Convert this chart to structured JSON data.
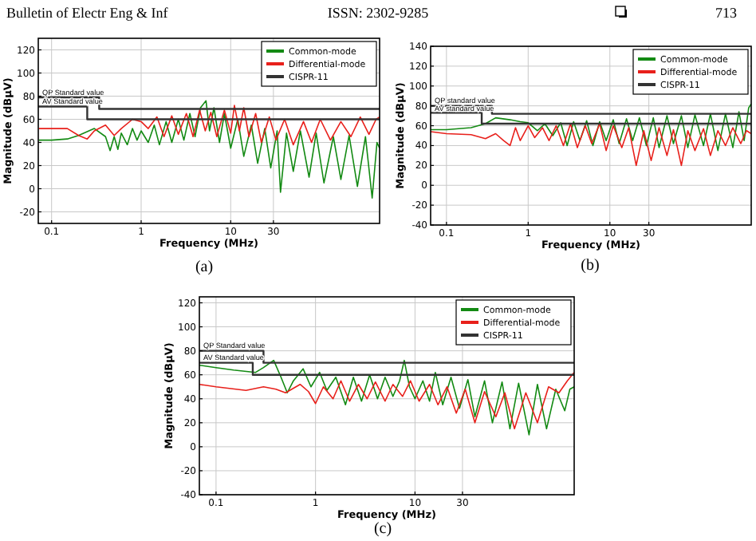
{
  "chart_data": [
    {
      "type": "line",
      "xlabel": "Frequency (MHz)",
      "ylabel": "Magnitude (dBμV)",
      "log": "x",
      "grid": true,
      "legend": "top right",
      "xlim": [
        0.071,
        460
      ],
      "xticks": [
        0.1,
        1,
        10,
        30
      ],
      "ylim": [
        -30,
        130
      ],
      "yticks": [
        -20,
        0,
        20,
        40,
        60,
        80,
        100,
        120
      ],
      "annotations": [
        "Bulletin of Electr Eng & Inf",
        "ISSN: 2302-9285",
        "713",
        "(a)",
        {
          "text": "QP Standard value",
          "x": 0.071,
          "y": 79
        },
        {
          "text": "AV Standard value",
          "x": 0.071,
          "y": 71
        }
      ],
      "series": [
        {
          "name": "Common-mode",
          "color": "#138a13",
          "x": [
            0.072,
            0.1,
            0.15,
            0.2,
            0.3,
            0.4,
            0.45,
            0.5,
            0.55,
            0.6,
            0.7,
            0.8,
            0.9,
            1.0,
            1.2,
            1.4,
            1.6,
            1.9,
            2.2,
            2.6,
            3,
            3.5,
            4,
            4.6,
            5.3,
            5.8,
            6.5,
            7.5,
            8.5,
            10,
            12,
            14,
            17,
            20,
            24,
            28,
            33,
            36,
            42,
            50,
            60,
            75,
            90,
            110,
            140,
            170,
            210,
            260,
            320,
            380,
            430,
            460
          ],
          "values": [
            42,
            42,
            43,
            46,
            52,
            45,
            33,
            45,
            34,
            48,
            38,
            52,
            42,
            50,
            40,
            55,
            38,
            58,
            40,
            60,
            42,
            65,
            45,
            70,
            76,
            50,
            70,
            40,
            65,
            35,
            60,
            28,
            55,
            22,
            52,
            18,
            50,
            -3,
            48,
            15,
            50,
            10,
            48,
            5,
            45,
            8,
            46,
            2,
            45,
            -8,
            40,
            35
          ]
        },
        {
          "name": "Differential-mode",
          "color": "#e8201b",
          "x": [
            0.072,
            0.1,
            0.15,
            0.2,
            0.25,
            0.3,
            0.4,
            0.5,
            0.6,
            0.8,
            1.0,
            1.2,
            1.5,
            1.8,
            2.2,
            2.6,
            3.2,
            3.8,
            4.5,
            5.2,
            6,
            7,
            8.5,
            10,
            11,
            12.5,
            14,
            16,
            19,
            22,
            27,
            32,
            40,
            50,
            65,
            80,
            100,
            130,
            170,
            220,
            280,
            350,
            420,
            460
          ],
          "values": [
            52,
            52,
            52,
            46,
            43,
            50,
            55,
            46,
            52,
            60,
            58,
            52,
            62,
            45,
            63,
            47,
            65,
            45,
            68,
            50,
            66,
            45,
            68,
            48,
            72,
            50,
            70,
            45,
            65,
            40,
            62,
            42,
            60,
            38,
            58,
            40,
            60,
            42,
            58,
            45,
            62,
            47,
            60,
            62
          ]
        },
        {
          "name": "CISPR-11",
          "color": "#333333",
          "x": [
            0.071,
            0.34,
            0.34,
            460
          ],
          "values": [
            79,
            79,
            69,
            69
          ]
        },
        {
          "color": "#333333",
          "x": [
            0.071,
            0.25,
            0.25,
            460
          ],
          "values": [
            71,
            71,
            60,
            60
          ]
        }
      ]
    },
    {
      "type": "line",
      "xlabel": "Frequency (MHz)",
      "ylabel": "Magnitude (dBμV)",
      "log": "x",
      "grid": true,
      "legend": "top right",
      "xlim": [
        0.064,
        537
      ],
      "xticks": [
        0.1,
        1,
        10,
        30
      ],
      "ylim": [
        -40,
        140
      ],
      "yticks": [
        -40,
        -20,
        0,
        20,
        40,
        60,
        80,
        100,
        120,
        140
      ],
      "annotations": [
        "(b)",
        {
          "text": "QP standard value",
          "x": 0.064,
          "y": 80
        },
        {
          "text": "AV standard value",
          "x": 0.064,
          "y": 72
        }
      ],
      "series": [
        {
          "name": "Common-mode",
          "color": "#138a13",
          "x": [
            0.064,
            0.1,
            0.2,
            0.3,
            0.4,
            0.6,
            0.8,
            1,
            1.3,
            1.6,
            2,
            2.5,
            3,
            3.6,
            4.3,
            5.2,
            6.2,
            7.5,
            9,
            11,
            13,
            16,
            19,
            23,
            28,
            34,
            40,
            50,
            60,
            75,
            90,
            110,
            140,
            170,
            210,
            260,
            320,
            380,
            440,
            500,
            537
          ],
          "values": [
            56,
            56,
            58,
            62,
            68,
            66,
            64,
            63,
            55,
            62,
            50,
            63,
            40,
            64,
            45,
            65,
            40,
            64,
            45,
            66,
            42,
            67,
            45,
            68,
            40,
            68,
            38,
            70,
            42,
            70,
            38,
            71,
            40,
            72,
            35,
            72,
            38,
            74,
            45,
            78,
            82
          ]
        },
        {
          "name": "Differential-mode",
          "color": "#e8201b",
          "x": [
            0.064,
            0.1,
            0.2,
            0.3,
            0.4,
            0.5,
            0.6,
            0.7,
            0.8,
            1,
            1.2,
            1.5,
            1.8,
            2.2,
            2.7,
            3.3,
            4,
            5,
            6,
            7.5,
            9,
            11,
            14,
            17,
            21,
            26,
            32,
            40,
            50,
            60,
            75,
            90,
            110,
            140,
            170,
            210,
            260,
            320,
            400,
            470,
            537
          ],
          "values": [
            54,
            52,
            51,
            47,
            52,
            45,
            40,
            58,
            45,
            60,
            48,
            58,
            45,
            60,
            40,
            62,
            38,
            60,
            42,
            62,
            35,
            60,
            38,
            58,
            20,
            55,
            25,
            58,
            30,
            56,
            20,
            55,
            35,
            57,
            30,
            55,
            40,
            58,
            42,
            55,
            52
          ]
        },
        {
          "name": "CISPR-11",
          "color": "#333333",
          "x": [
            0.064,
            0.36,
            0.36,
            537
          ],
          "values": [
            80,
            80,
            72,
            72
          ]
        },
        {
          "color": "#333333",
          "x": [
            0.064,
            0.27,
            0.27,
            537
          ],
          "values": [
            73,
            73,
            62,
            62
          ]
        }
      ]
    },
    {
      "type": "line",
      "xlabel": "Frequency (MHz)",
      "ylabel": "Magnitude (dBμV)",
      "log": "x",
      "grid": true,
      "legend": "top right",
      "xlim": [
        0.068,
        398
      ],
      "xticks": [
        0.1,
        1,
        10,
        30
      ],
      "ylim": [
        -40,
        125
      ],
      "yticks": [
        -40,
        -20,
        0,
        20,
        40,
        60,
        80,
        100,
        120
      ],
      "annotations": [
        "(c)",
        {
          "text": "QP Standard value",
          "x": 0.068,
          "y": 80
        },
        {
          "text": "AV Standard value",
          "x": 0.068,
          "y": 70
        }
      ],
      "series": [
        {
          "name": "Common-mode",
          "color": "#138a13",
          "x": [
            0.068,
            0.1,
            0.15,
            0.25,
            0.3,
            0.38,
            0.45,
            0.52,
            0.6,
            0.75,
            0.9,
            1.1,
            1.3,
            1.6,
            2,
            2.4,
            2.9,
            3.5,
            4.2,
            5,
            6,
            7,
            7.8,
            8.8,
            10,
            12,
            14,
            16,
            19,
            23,
            28,
            34,
            40,
            50,
            60,
            75,
            90,
            110,
            140,
            170,
            210,
            260,
            320,
            360,
            398
          ],
          "values": [
            68,
            66,
            64,
            62,
            66,
            72,
            58,
            45,
            55,
            65,
            50,
            62,
            47,
            58,
            35,
            58,
            38,
            60,
            40,
            58,
            42,
            55,
            72,
            50,
            40,
            55,
            38,
            62,
            35,
            58,
            32,
            56,
            25,
            55,
            20,
            54,
            15,
            53,
            10,
            52,
            15,
            48,
            30,
            48,
            50
          ]
        },
        {
          "name": "Differential-mode",
          "color": "#e8201b",
          "x": [
            0.068,
            0.1,
            0.2,
            0.3,
            0.4,
            0.5,
            0.7,
            0.85,
            1,
            1.2,
            1.5,
            1.8,
            2.2,
            2.7,
            3.3,
            4,
            5,
            6,
            7.5,
            9,
            11,
            14,
            17,
            21,
            26,
            32,
            40,
            50,
            65,
            80,
            100,
            130,
            170,
            220,
            280,
            340,
            398
          ],
          "values": [
            52,
            50,
            47,
            50,
            48,
            45,
            52,
            46,
            36,
            50,
            40,
            55,
            38,
            52,
            40,
            54,
            38,
            52,
            42,
            55,
            38,
            52,
            35,
            50,
            28,
            48,
            20,
            46,
            25,
            45,
            15,
            45,
            20,
            50,
            45,
            55,
            62
          ]
        },
        {
          "name": "CISPR-11",
          "color": "#333333",
          "x": [
            0.068,
            0.3,
            0.3,
            398
          ],
          "values": [
            80,
            80,
            70,
            70
          ]
        },
        {
          "color": "#333333",
          "x": [
            0.068,
            0.234,
            0.234,
            398
          ],
          "values": [
            70,
            70,
            60,
            60
          ]
        }
      ]
    }
  ]
}
